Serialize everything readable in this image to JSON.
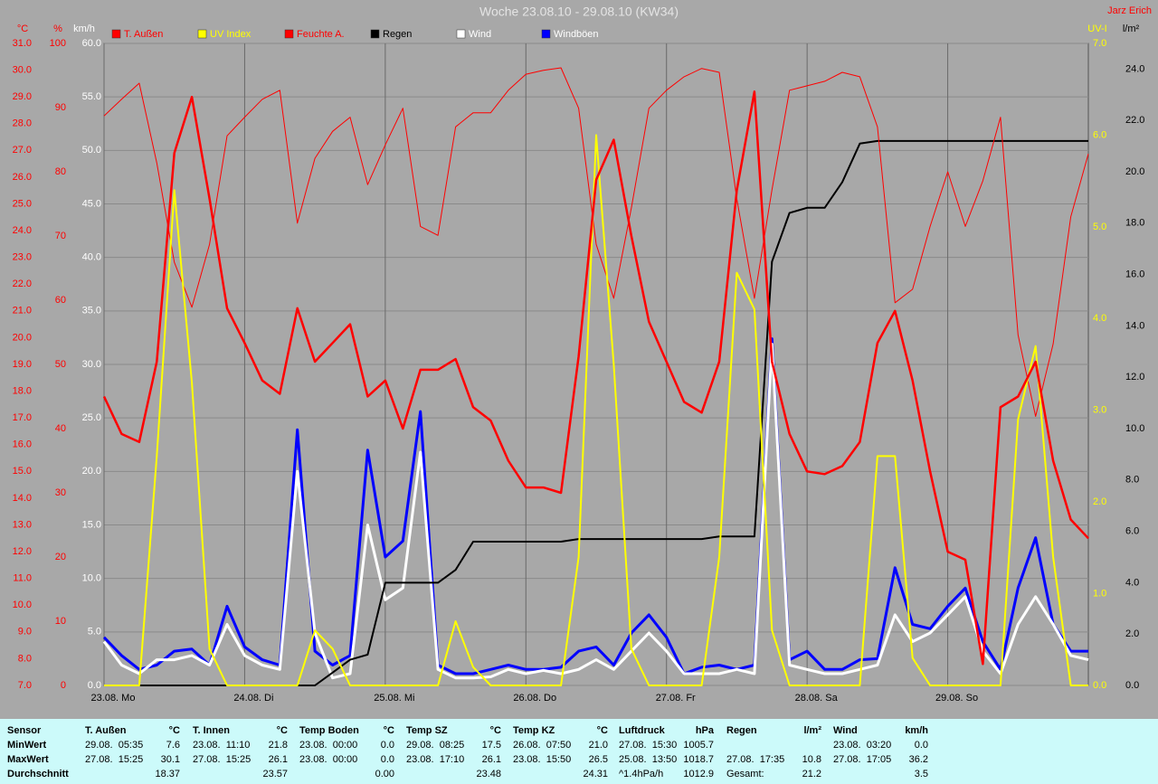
{
  "chart_data": {
    "type": "line",
    "title": "Woche 23.08.10 - 29.08.10 (KW34)",
    "xlim": [
      0,
      168
    ],
    "xticks": [
      {
        "value": 0,
        "label": "23.08. Mo"
      },
      {
        "value": 24,
        "label": "24.08. Di"
      },
      {
        "value": 48,
        "label": "25.08. Mi"
      },
      {
        "value": 72,
        "label": "26.08. Do"
      },
      {
        "value": 96,
        "label": "27.08. Fr"
      },
      {
        "value": 120,
        "label": "28.08. Sa"
      },
      {
        "value": 144,
        "label": "29.08. So"
      }
    ],
    "axes": [
      {
        "label": "°C",
        "color": "#ff0000",
        "side": "left",
        "lim": [
          7,
          31
        ],
        "ticks": [
          {
            "value": 7,
            "label": "7.0"
          },
          {
            "value": 8,
            "label": "8.0"
          },
          {
            "value": 9,
            "label": "9.0"
          },
          {
            "value": 10,
            "label": "10.0"
          },
          {
            "value": 11,
            "label": "11.0"
          },
          {
            "value": 12,
            "label": "12.0"
          },
          {
            "value": 13,
            "label": "13.0"
          },
          {
            "value": 14,
            "label": "14.0"
          },
          {
            "value": 15,
            "label": "15.0"
          },
          {
            "value": 16,
            "label": "16.0"
          },
          {
            "value": 17,
            "label": "17.0"
          },
          {
            "value": 18,
            "label": "18.0"
          },
          {
            "value": 19,
            "label": "19.0"
          },
          {
            "value": 20,
            "label": "20.0"
          },
          {
            "value": 21,
            "label": "21.0"
          },
          {
            "value": 22,
            "label": "22.0"
          },
          {
            "value": 23,
            "label": "23.0"
          },
          {
            "value": 24,
            "label": "24.0"
          },
          {
            "value": 25,
            "label": "25.0"
          },
          {
            "value": 26,
            "label": "26.0"
          },
          {
            "value": 27,
            "label": "27.0"
          },
          {
            "value": 28,
            "label": "28.0"
          },
          {
            "value": 29,
            "label": "29.0"
          },
          {
            "value": 30,
            "label": "30.0"
          },
          {
            "value": 31,
            "label": "31.0"
          }
        ]
      },
      {
        "label": "%",
        "color": "#ff0000",
        "side": "left",
        "lim": [
          0,
          100
        ],
        "ticks": [
          0,
          10,
          20,
          30,
          40,
          50,
          60,
          70,
          80,
          90,
          100
        ]
      },
      {
        "label": "km/h",
        "color": "#ffffff",
        "side": "left",
        "grid": true,
        "lim": [
          0,
          60
        ],
        "ticks": [
          {
            "value": 0,
            "label": "0.0"
          },
          {
            "value": 5,
            "label": "5.0"
          },
          {
            "value": 10,
            "label": "10.0"
          },
          {
            "value": 15,
            "label": "15.0"
          },
          {
            "value": 20,
            "label": "20.0"
          },
          {
            "value": 25,
            "label": "25.0"
          },
          {
            "value": 30,
            "label": "30.0"
          },
          {
            "value": 35,
            "label": "35.0"
          },
          {
            "value": 40,
            "label": "40.0"
          },
          {
            "value": 45,
            "label": "45.0"
          },
          {
            "value": 50,
            "label": "50.0"
          },
          {
            "value": 55,
            "label": "55.0"
          },
          {
            "value": 60,
            "label": "60.0"
          }
        ]
      },
      {
        "label": "UV-I",
        "color": "#ffff00",
        "side": "right",
        "lim": [
          0,
          7
        ],
        "ticks": [
          {
            "value": 0,
            "label": "0.0"
          },
          {
            "value": 1,
            "label": "1.0"
          },
          {
            "value": 2,
            "label": "2.0"
          },
          {
            "value": 3,
            "label": "3.0"
          },
          {
            "value": 4,
            "label": "4.0"
          },
          {
            "value": 5,
            "label": "5.0"
          },
          {
            "value": 6,
            "label": "6.0"
          },
          {
            "value": 7,
            "label": "7.0"
          }
        ]
      },
      {
        "label": "l/m²",
        "color": "#000000",
        "side": "right",
        "lim": [
          0,
          25
        ],
        "ticks": [
          {
            "value": 0,
            "label": "0.0"
          },
          {
            "value": 2,
            "label": "2.0"
          },
          {
            "value": 4,
            "label": "4.0"
          },
          {
            "value": 6,
            "label": "6.0"
          },
          {
            "value": 8,
            "label": "8.0"
          },
          {
            "value": 10,
            "label": "10.0"
          },
          {
            "value": 12,
            "label": "12.0"
          },
          {
            "value": 14,
            "label": "14.0"
          },
          {
            "value": 16,
            "label": "16.0"
          },
          {
            "value": 18,
            "label": "18.0"
          },
          {
            "value": 20,
            "label": "20.0"
          },
          {
            "value": 22,
            "label": "22.0"
          },
          {
            "value": 24,
            "label": "24.0"
          }
        ]
      }
    ],
    "x": [
      0,
      3,
      6,
      9,
      12,
      15,
      18,
      21,
      24,
      27,
      30,
      33,
      36,
      39,
      42,
      45,
      48,
      51,
      54,
      57,
      60,
      63,
      66,
      69,
      72,
      75,
      78,
      81,
      84,
      87,
      90,
      93,
      96,
      99,
      102,
      105,
      108,
      111,
      114,
      117,
      120,
      123,
      126,
      129,
      132,
      135,
      138,
      141,
      144,
      147,
      150,
      153,
      156,
      159,
      162,
      165,
      168
    ],
    "series": [
      {
        "name": "T. Außen",
        "color": "#ff0000",
        "axis": 0,
        "values": [
          17.8,
          16.4,
          16.1,
          19.1,
          26.9,
          29.0,
          25.2,
          21.1,
          19.8,
          18.4,
          17.9,
          21.1,
          19.1,
          19.8,
          20.5,
          17.8,
          18.4,
          16.6,
          18.8,
          18.8,
          19.2,
          17.4,
          16.9,
          15.4,
          14.4,
          14.4,
          14.2,
          19.3,
          25.9,
          27.4,
          23.8,
          20.6,
          19.1,
          17.6,
          17.2,
          19.1,
          25.5,
          29.2,
          19.1,
          16.4,
          15.0,
          14.9,
          15.2,
          16.1,
          19.8,
          21.0,
          18.4,
          15.0,
          12.0,
          11.7,
          7.8,
          17.4,
          17.8,
          19.1,
          15.4,
          13.2,
          12.5
        ]
      },
      {
        "name": "UV Index",
        "color": "#ffff00",
        "axis": 3,
        "values": [
          0,
          0,
          0,
          2.5,
          5.4,
          3.3,
          0.4,
          0,
          0,
          0,
          0,
          0,
          0.6,
          0.4,
          0,
          0,
          0,
          0,
          0,
          0,
          0.7,
          0.2,
          0,
          0,
          0,
          0,
          0,
          1.4,
          6.0,
          3.5,
          0.4,
          0,
          0,
          0,
          0,
          1.4,
          4.5,
          4.1,
          0.6,
          0,
          0,
          0,
          0,
          0,
          2.5,
          2.5,
          0.3,
          0,
          0,
          0,
          0,
          0,
          2.9,
          3.7,
          1.4,
          0,
          0
        ]
      },
      {
        "name": "Feuchte A.",
        "color": "#ff0000",
        "axis": 1,
        "values": [
          88.7,
          91.3,
          93.8,
          81.4,
          65.9,
          58.9,
          68.7,
          85.6,
          88.5,
          91.3,
          92.7,
          72.0,
          82.1,
          86.3,
          88.5,
          78.0,
          84.2,
          89.9,
          71.5,
          70.1,
          87.0,
          89.2,
          89.2,
          92.7,
          95.2,
          95.8,
          96.2,
          89.9,
          68.7,
          60.3,
          74.4,
          89.9,
          92.7,
          94.8,
          96.1,
          95.5,
          75.8,
          60.3,
          77.2,
          92.7,
          93.4,
          94.1,
          95.5,
          94.8,
          87.0,
          59.6,
          61.7,
          71.5,
          80.0,
          71.5,
          78.6,
          88.5,
          54.6,
          41.9,
          53.2,
          73.0,
          82.8
        ]
      },
      {
        "name": "Regen",
        "color": "#000000",
        "axis": 4,
        "values": [
          0,
          0,
          0,
          0,
          0,
          0,
          0,
          0,
          0,
          0,
          0,
          0,
          0,
          0.5,
          1.0,
          1.2,
          4.0,
          4.0,
          4.0,
          4.0,
          4.5,
          5.6,
          5.6,
          5.6,
          5.6,
          5.6,
          5.6,
          5.7,
          5.7,
          5.7,
          5.7,
          5.7,
          5.7,
          5.7,
          5.7,
          5.8,
          5.8,
          5.8,
          16.5,
          18.4,
          18.6,
          18.6,
          19.6,
          21.1,
          21.2,
          21.2,
          21.2,
          21.2,
          21.2,
          21.2,
          21.2,
          21.2,
          21.2,
          21.2,
          21.2,
          21.2,
          21.2
        ]
      },
      {
        "name": "Wind",
        "color": "#ffffff",
        "axis": 2,
        "values": [
          4.1,
          1.9,
          1.1,
          2.4,
          2.4,
          2.8,
          1.9,
          5.7,
          2.8,
          1.9,
          1.5,
          20.0,
          4.9,
          0.7,
          1.1,
          15.0,
          8.0,
          9.1,
          21.8,
          1.5,
          0.7,
          0.7,
          0.8,
          1.5,
          1.1,
          1.4,
          1.1,
          1.5,
          2.4,
          1.5,
          3.2,
          4.9,
          3.2,
          1.1,
          1.1,
          1.1,
          1.5,
          1.1,
          31.9,
          1.9,
          1.5,
          1.1,
          1.1,
          1.5,
          1.9,
          6.6,
          4.1,
          4.9,
          6.6,
          8.3,
          3.2,
          1.1,
          5.7,
          8.3,
          5.7,
          2.8,
          2.4
        ]
      },
      {
        "name": "Windböen",
        "color": "#0000ff",
        "axis": 2,
        "values": [
          4.5,
          2.8,
          1.5,
          1.9,
          3.2,
          3.4,
          1.9,
          7.4,
          3.6,
          2.4,
          1.9,
          23.9,
          3.2,
          1.9,
          2.8,
          22.0,
          12.0,
          13.5,
          25.6,
          1.9,
          1.1,
          1.1,
          1.5,
          1.9,
          1.5,
          1.5,
          1.7,
          3.2,
          3.6,
          1.9,
          4.9,
          6.6,
          4.5,
          1.1,
          1.7,
          1.9,
          1.5,
          1.9,
          32.4,
          2.4,
          3.2,
          1.5,
          1.5,
          2.4,
          2.5,
          11.0,
          5.7,
          5.3,
          7.4,
          9.1,
          4.1,
          1.5,
          9.1,
          13.8,
          5.7,
          3.2,
          3.2
        ]
      }
    ]
  },
  "author": "Jarz Erich",
  "table": {
    "header": "Sensor",
    "row_labels": [
      "MinWert",
      "MaxWert",
      "Durchschnitt"
    ],
    "columns": [
      {
        "name": "T. Außen",
        "unit": "°C",
        "min": {
          "time": "29.08.  05:35",
          "value": "7.6"
        },
        "max": {
          "time": "27.08.  15:25",
          "value": "30.1"
        },
        "avg": {
          "value": "18.37"
        }
      },
      {
        "name": "T. Innen",
        "unit": "°C",
        "min": {
          "time": "23.08.  11:10",
          "value": "21.8"
        },
        "max": {
          "time": "27.08.  15:25",
          "value": "26.1"
        },
        "avg": {
          "value": "23.57"
        }
      },
      {
        "name": "Temp Boden",
        "unit": "°C",
        "min": {
          "time": "23.08.  00:00",
          "value": "0.0"
        },
        "max": {
          "time": "23.08.  00:00",
          "value": "0.0"
        },
        "avg": {
          "value": "0.00"
        }
      },
      {
        "name": "Temp SZ",
        "unit": "°C",
        "min": {
          "time": "29.08.  08:25",
          "value": "17.5"
        },
        "max": {
          "time": "23.08.  17:10",
          "value": "26.1"
        },
        "avg": {
          "value": "23.48"
        }
      },
      {
        "name": "Temp KZ",
        "unit": "°C",
        "min": {
          "time": "26.08.  07:50",
          "value": "21.0"
        },
        "max": {
          "time": "23.08.  15:50",
          "value": "26.5"
        },
        "avg": {
          "value": "24.31"
        }
      },
      {
        "name": "Luftdruck",
        "unit": "hPa",
        "min": {
          "time": "27.08.  15:30",
          "value": "1005.7"
        },
        "max": {
          "time": "25.08.  13:50",
          "value": "1018.7"
        },
        "avg": {
          "time": "^1.4hPa/h",
          "value": "1012.9"
        }
      },
      {
        "name": "Regen",
        "unit": "l/m²",
        "max": {
          "time": "27.08.  17:35",
          "value": "10.8"
        },
        "avg": {
          "time": "Gesamt:",
          "value": "21.2"
        }
      },
      {
        "name": "Wind",
        "unit": "km/h",
        "min": {
          "time": "23.08.  03:20",
          "value": "0.0"
        },
        "max": {
          "time": "27.08.  17:05",
          "value": "36.2"
        },
        "avg": {
          "value": "3.5"
        }
      }
    ]
  }
}
